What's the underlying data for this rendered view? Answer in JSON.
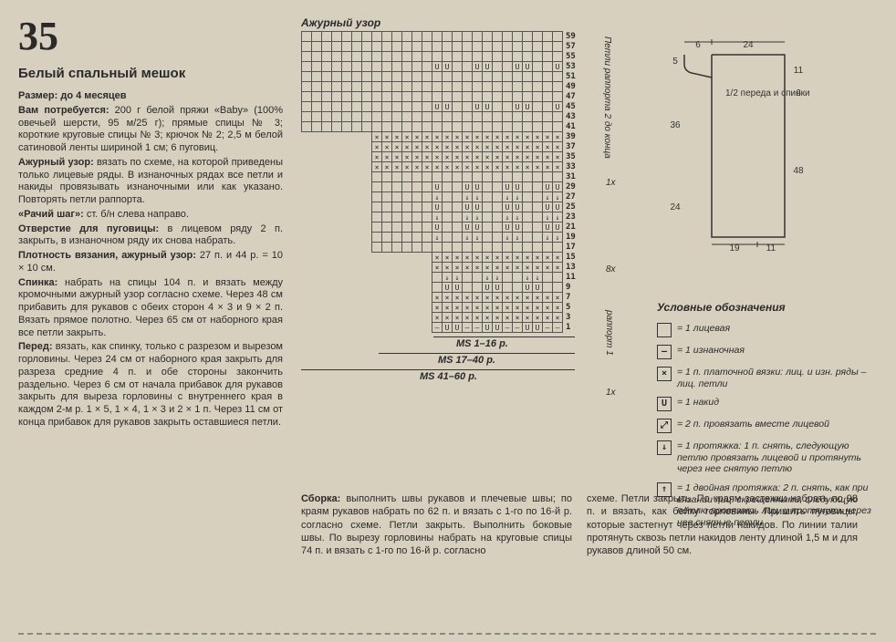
{
  "page_number": "35",
  "title": "Белый спальный мешок",
  "chart_title": "Ажурный узор",
  "left_text": {
    "p1": "Размер: до 4 месяцев",
    "p2_b": "Вам потребуется:",
    "p2": " 200 г белой пряжи «Baby» (100% овечьей шерсти, 95 м/25 г); прямые спицы № 3; короткие круговые спицы № 3; крючок № 2; 2,5 м белой сатиновой ленты шириной 1 см; 6 пуговиц.",
    "p3_b": "Ажурный узор:",
    "p3": " вязать по схеме, на которой приведены только лицевые ряды. В изнаночных рядах все петли и накиды провязывать изнаночными или как указано. Повторять петли раппорта.",
    "p4_b": "«Рачий шаг»:",
    "p4": " ст. б/н слева направо.",
    "p5_b": "Отверстие для пуговицы:",
    "p5": " в лицевом ряду 2 п. закрыть, в изнаночном ряду их снова набрать.",
    "p6_b": "Плотность вязания, ажурный узор:",
    "p6": " 27 п. и 44 р. = 10 × 10 см.",
    "p7_b": "Спинка:",
    "p7": " набрать на спицы 104 п. и вязать между кромочными ажурный узор согласно схеме. Через 48 см прибавить для рукавов с обеих сторон 4 × 3 и 9 × 2 п. Вязать прямое полотно. Через 65 см от наборного края все петли закрыть.",
    "p8_b": "Перед:",
    "p8": " вязать, как спинку, только с разрезом и вырезом горловины. Через 24 см от наборного края закрыть для разреза средние 4 п. и обе стороны закончить раздельно. Через 6 см от начала прибавок для рукавов закрыть для выреза горловины с внутреннего края в каждом 2-м р. 1 × 5, 1 × 4, 1 × 3 и 2 × 1 п. Через 11 см от конца прибавок для рукавов закрыть оставшиеся петли."
  },
  "bottom": {
    "c1_b": "Сборка:",
    "c1": " выполнить швы рукавов и плечевые швы; по краям рукавов набрать по 62 п. и вязать с 1-го по 16-й р. согласно схеме. Петли закрыть. Выполнить боковые швы. По вырезу горловины набрать на круговые спицы 74 п. и вязать с 1-го по 16-й р. согласно",
    "c2": "схеме. Петли закрыть. По краям застежки набрать по 98 п. и вязать, как бейку горловины. Пришить пуговицы, которые застегнут через петли накидов. По линии талии протянуть сквозь петли накидов ленту длиной 1,5 м и для рукавов длиной 50 см."
  },
  "chart_rows": [
    59,
    57,
    55,
    53,
    51,
    49,
    47,
    45,
    43,
    41,
    39,
    37,
    35,
    33,
    31,
    29,
    27,
    25,
    23,
    21,
    19,
    17,
    15,
    13,
    11,
    9,
    7,
    5,
    3,
    1
  ],
  "ms1": "MS 1–16 p.",
  "ms2": "MS 17–40 p.",
  "ms3": "MS 41–60 p.",
  "vlabel1": "Петли раппорта 2 до конца",
  "br1": "1x",
  "br2": "8x",
  "br3": "раппорт 1",
  "br4": "1x",
  "schematic": {
    "label": "1/2 переда и спинки",
    "w1": "6",
    "w2": "24",
    "h1": "5",
    "h2": "36",
    "h3": "24",
    "r_h1": "11",
    "r_h2": "6",
    "r_h3": "48",
    "b1": "19",
    "b2": "11"
  },
  "legend_title": "Условные обозначения",
  "legend": [
    {
      "sym": "",
      "txt": "= 1 лицевая"
    },
    {
      "sym": "–",
      "txt": "= 1 изнаночная"
    },
    {
      "sym": "×",
      "txt": "= 1 п. платочной вязки: лиц. и изн. ряды – лиц. петли"
    },
    {
      "sym": "U",
      "txt": "= 1 накид"
    },
    {
      "sym": "⤢",
      "txt": "= 2 п. провязать вместе лицевой"
    },
    {
      "sym": "↓",
      "txt": "= 1 протяжка: 1 п. снять, следующую петлю провязать лицевой и протянуть через нее снятую петлю"
    },
    {
      "sym": "↑",
      "txt": "= 1 двойная протяжка: 2 п. снять, как при вязании лиц. скрещенными, следующую петлю провязать лиц. и протянуть через нее снятые петли"
    }
  ]
}
